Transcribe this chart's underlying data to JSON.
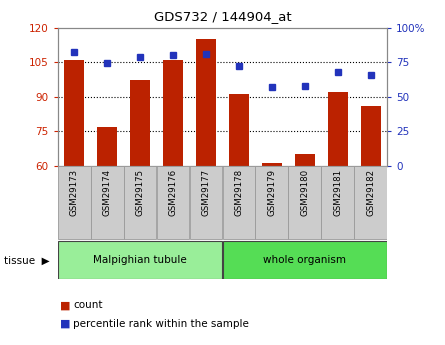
{
  "title": "GDS732 / 144904_at",
  "samples": [
    "GSM29173",
    "GSM29174",
    "GSM29175",
    "GSM29176",
    "GSM29177",
    "GSM29178",
    "GSM29179",
    "GSM29180",
    "GSM29181",
    "GSM29182"
  ],
  "count_values": [
    106,
    77,
    97,
    106,
    115,
    91,
    61,
    65,
    92,
    86
  ],
  "percentile_values": [
    82,
    74,
    79,
    80,
    81,
    72,
    57,
    58,
    68,
    66
  ],
  "ylim_left": [
    60,
    120
  ],
  "ylim_right": [
    0,
    100
  ],
  "yticks_left": [
    60,
    75,
    90,
    105,
    120
  ],
  "yticks_right": [
    0,
    25,
    50,
    75,
    100
  ],
  "ytick_labels_right": [
    "0",
    "25",
    "50",
    "75",
    "100%"
  ],
  "bar_color": "#bb2200",
  "dot_color": "#2233bb",
  "tissue_group_1_label": "Malpighian tubule",
  "tissue_group_1_color": "#99ee99",
  "tissue_group_2_label": "whole organism",
  "tissue_group_2_color": "#55dd55",
  "xlabel_tissue": "tissue",
  "legend_count": "count",
  "legend_percentile": "percentile rank within the sample",
  "tick_color_left": "#cc2200",
  "tick_color_right": "#2233bb",
  "bar_width": 0.6,
  "background_plot": "#ffffff",
  "background_xtick": "#cccccc",
  "spine_color": "#888888"
}
